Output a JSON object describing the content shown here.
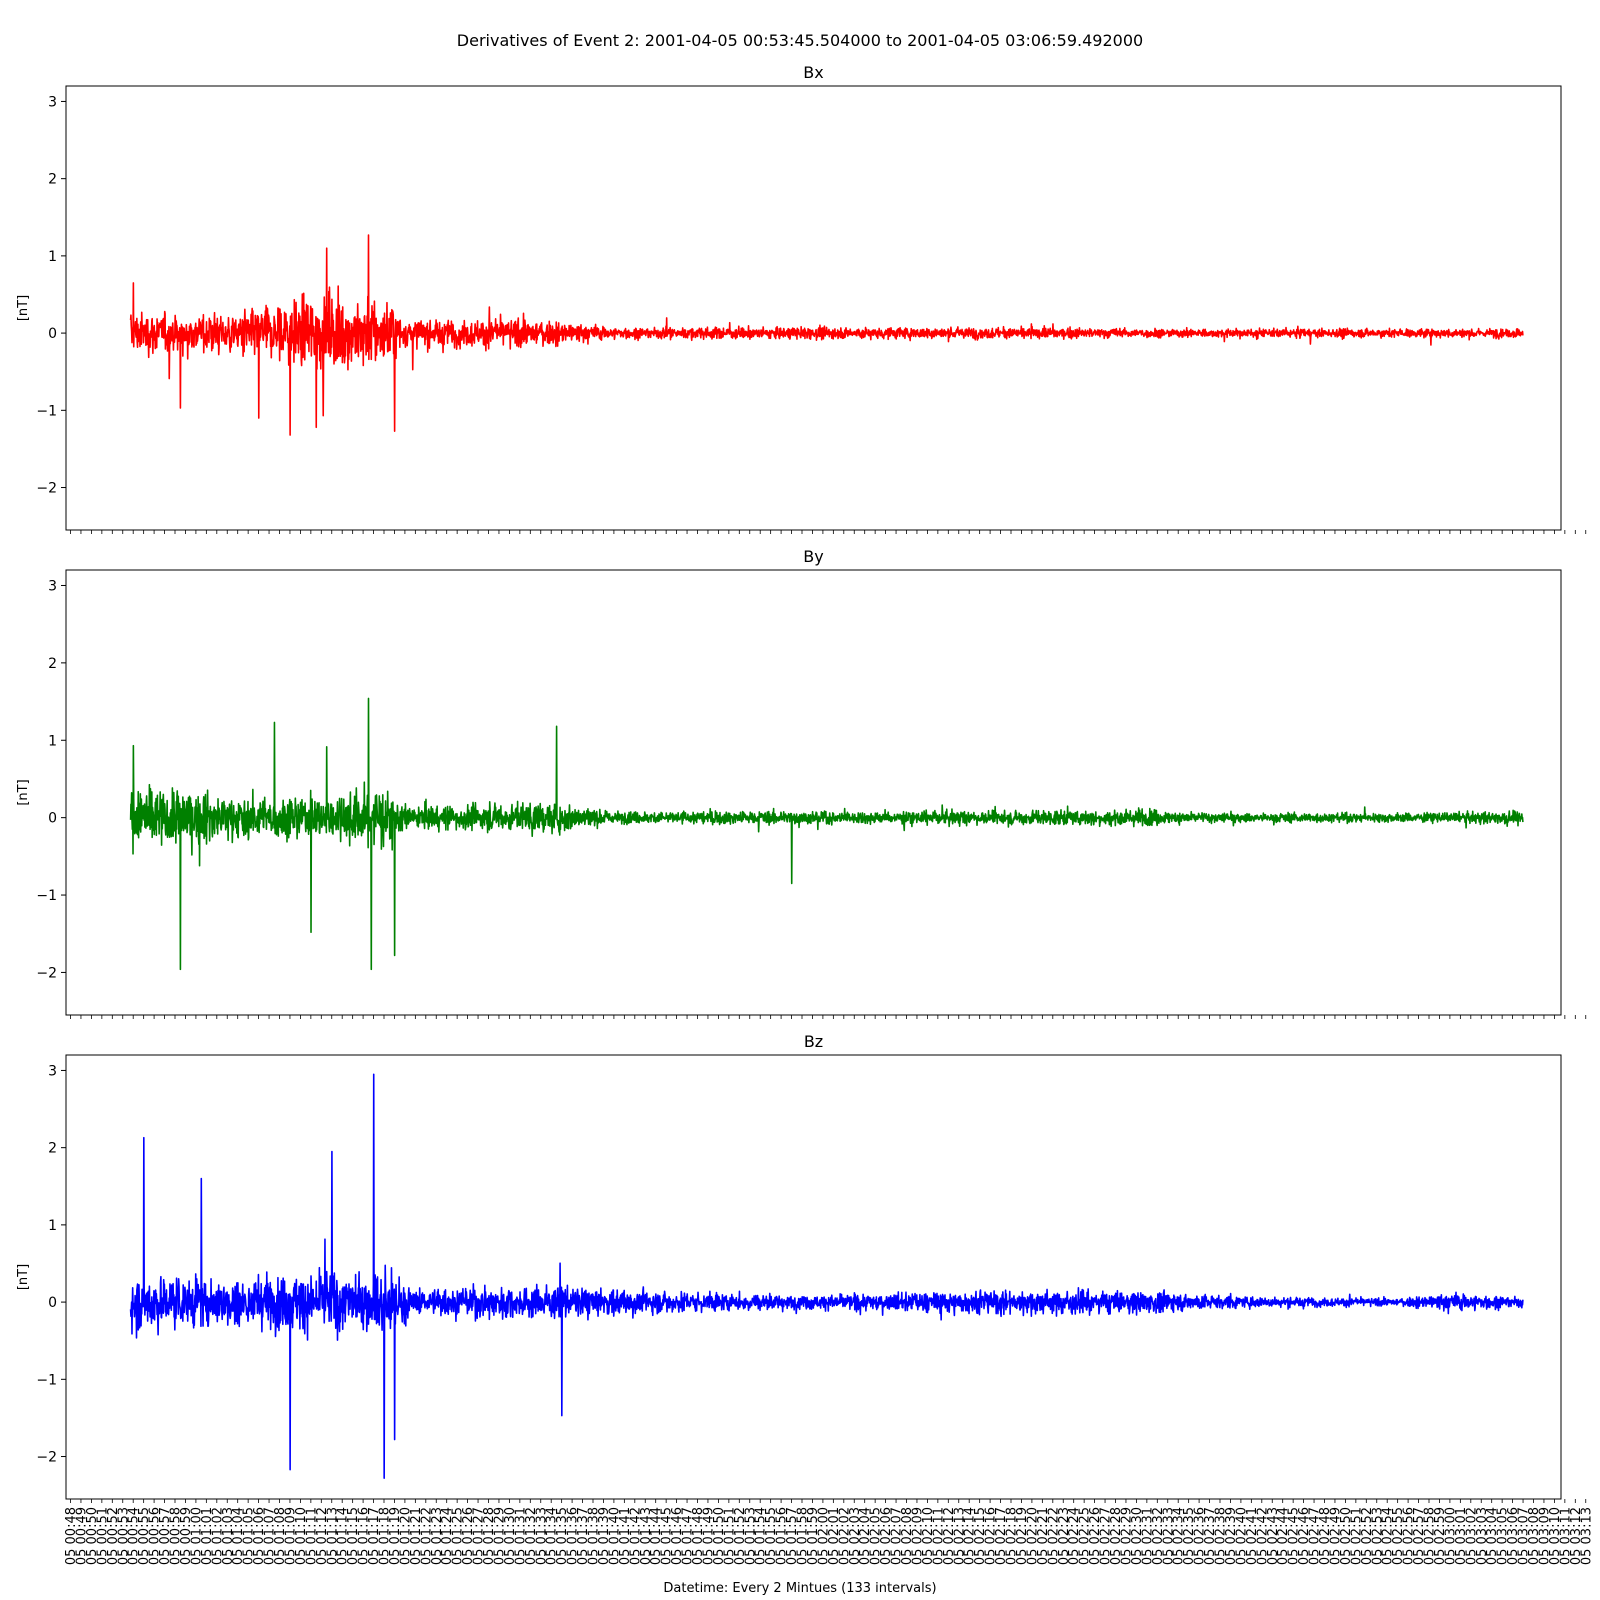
{
  "figure": {
    "suptitle": "Derivatives of Event 2: 2001-04-05 00:53:45.504000 to 2001-04-05 03:06:59.492000",
    "xlabel": "Datetime: Every 2 Mintues (133 intervals)"
  },
  "chart_data": [
    {
      "type": "line",
      "title": "Bx",
      "ylabel": "[nT]",
      "color": "#ff0000",
      "ylim": [
        -2.55,
        3.2
      ],
      "yticks": [
        -2,
        -1,
        0,
        1,
        2,
        3
      ],
      "grid": false,
      "x_range": [
        "00:53:45",
        "03:06:59"
      ],
      "peaks": [
        {
          "time": "00:54:00",
          "value": 0.65
        },
        {
          "time": "00:58:30",
          "value": -0.97
        },
        {
          "time": "01:06:00",
          "value": -1.1
        },
        {
          "time": "01:09:00",
          "value": -1.32
        },
        {
          "time": "01:11:30",
          "value": -1.22
        },
        {
          "time": "01:12:30",
          "value": 1.1
        },
        {
          "time": "01:16:30",
          "value": 1.27
        },
        {
          "time": "01:19:00",
          "value": -1.27
        }
      ]
    },
    {
      "type": "line",
      "title": "By",
      "ylabel": "[nT]",
      "color": "#008000",
      "ylim": [
        -2.55,
        3.2
      ],
      "yticks": [
        -2,
        -1,
        0,
        1,
        2,
        3
      ],
      "grid": false,
      "x_range": [
        "00:53:45",
        "03:06:59"
      ],
      "peaks": [
        {
          "time": "00:54:00",
          "value": 0.93
        },
        {
          "time": "00:58:30",
          "value": -1.96
        },
        {
          "time": "01:07:30",
          "value": 1.23
        },
        {
          "time": "01:11:00",
          "value": -1.48
        },
        {
          "time": "01:16:30",
          "value": 1.54
        },
        {
          "time": "01:16:45",
          "value": -1.96
        },
        {
          "time": "01:19:00",
          "value": -1.78
        },
        {
          "time": "01:34:30",
          "value": 1.18
        },
        {
          "time": "01:57:00",
          "value": -0.85
        }
      ]
    },
    {
      "type": "line",
      "title": "Bz",
      "ylabel": "[nT]",
      "color": "#0000ff",
      "ylim": [
        -2.55,
        3.2
      ],
      "yticks": [
        -2,
        -1,
        0,
        1,
        2,
        3
      ],
      "grid": false,
      "x_range": [
        "00:53:45",
        "03:06:59"
      ],
      "peaks": [
        {
          "time": "00:55:00",
          "value": 2.13
        },
        {
          "time": "01:00:30",
          "value": 1.6
        },
        {
          "time": "01:09:00",
          "value": -2.17
        },
        {
          "time": "01:13:00",
          "value": 1.95
        },
        {
          "time": "01:17:00",
          "value": 2.95
        },
        {
          "time": "01:18:00",
          "value": -2.28
        },
        {
          "time": "01:19:00",
          "value": -1.78
        },
        {
          "time": "01:35:00",
          "value": -1.47
        }
      ]
    }
  ],
  "xaxis": {
    "tick_interval_minutes": 1,
    "ticks": [
      "05 00:48",
      "05 00:49",
      "05 00:50",
      "05 00:51",
      "05 00:52",
      "05 00:53",
      "05 00:54",
      "05 00:55",
      "05 00:56",
      "05 00:57",
      "05 00:58",
      "05 00:59",
      "05 01:00",
      "05 01:01",
      "05 01:02",
      "05 01:03",
      "05 01:04",
      "05 01:05",
      "05 01:06",
      "05 01:07",
      "05 01:08",
      "05 01:09",
      "05 01:10",
      "05 01:11",
      "05 01:12",
      "05 01:13",
      "05 01:14",
      "05 01:15",
      "05 01:16",
      "05 01:17",
      "05 01:18",
      "05 01:19",
      "05 01:20",
      "05 01:21",
      "05 01:22",
      "05 01:23",
      "05 01:24",
      "05 01:25",
      "05 01:26",
      "05 01:27",
      "05 01:28",
      "05 01:29",
      "05 01:30",
      "05 01:31",
      "05 01:32",
      "05 01:33",
      "05 01:34",
      "05 01:35",
      "05 01:36",
      "05 01:37",
      "05 01:38",
      "05 01:39",
      "05 01:40",
      "05 01:41",
      "05 01:42",
      "05 01:43",
      "05 01:44",
      "05 01:45",
      "05 01:46",
      "05 01:47",
      "05 01:48",
      "05 01:49",
      "05 01:50",
      "05 01:51",
      "05 01:52",
      "05 01:53",
      "05 01:54",
      "05 01:55",
      "05 01:56",
      "05 01:57",
      "05 01:58",
      "05 01:59",
      "05 02:00",
      "05 02:01",
      "05 02:02",
      "05 02:03",
      "05 02:04",
      "05 02:05",
      "05 02:06",
      "05 02:07",
      "05 02:08",
      "05 02:09",
      "05 02:10",
      "05 02:11",
      "05 02:12",
      "05 02:13",
      "05 02:14",
      "05 02:15",
      "05 02:16",
      "05 02:17",
      "05 02:18",
      "05 02:19",
      "05 02:20",
      "05 02:21",
      "05 02:22",
      "05 02:23",
      "05 02:24",
      "05 02:25",
      "05 02:26",
      "05 02:27",
      "05 02:28",
      "05 02:29",
      "05 02:30",
      "05 02:31",
      "05 02:32",
      "05 02:33",
      "05 02:34",
      "05 02:35",
      "05 02:36",
      "05 02:37",
      "05 02:38",
      "05 02:39",
      "05 02:40",
      "05 02:41",
      "05 02:42",
      "05 02:43",
      "05 02:44",
      "05 02:45",
      "05 02:46",
      "05 02:47",
      "05 02:48",
      "05 02:49",
      "05 02:50",
      "05 02:51",
      "05 02:52",
      "05 02:53",
      "05 02:54",
      "05 02:55",
      "05 02:56",
      "05 02:57",
      "05 02:58",
      "05 02:59",
      "05 03:00",
      "05 03:01",
      "05 03:02",
      "05 03:03",
      "05 03:04",
      "05 03:05",
      "05 03:06",
      "05 03:07",
      "05 03:08",
      "05 03:09",
      "05 03:10",
      "05 03:11",
      "05 03:12",
      "05 03:13"
    ]
  }
}
